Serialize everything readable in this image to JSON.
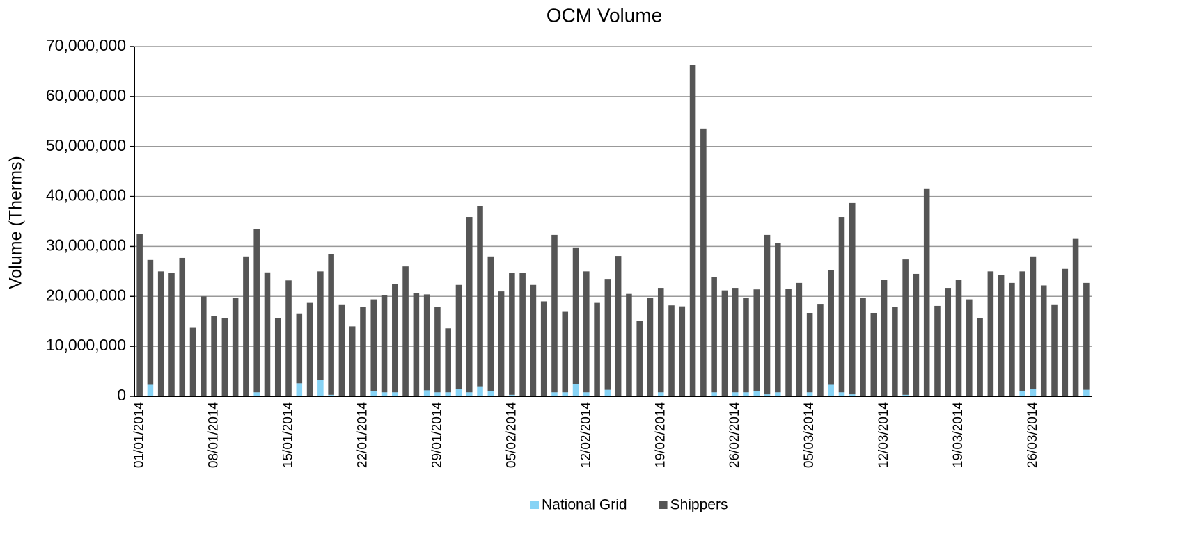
{
  "chart_data": {
    "type": "stacked_bar",
    "title": "OCM Volume",
    "y_label": "Volume (Therms)",
    "categories": [
      "01/01/2014",
      null,
      null,
      null,
      null,
      null,
      null,
      "08/01/2014",
      null,
      null,
      null,
      null,
      null,
      null,
      "15/01/2014",
      null,
      null,
      null,
      null,
      null,
      null,
      "22/01/2014",
      null,
      null,
      null,
      null,
      null,
      null,
      "29/01/2014",
      null,
      null,
      null,
      null,
      null,
      null,
      "05/02/2014",
      null,
      null,
      null,
      null,
      null,
      null,
      "12/02/2014",
      null,
      null,
      null,
      null,
      null,
      null,
      "19/02/2014",
      null,
      null,
      null,
      null,
      null,
      null,
      "26/02/2014",
      null,
      null,
      null,
      null,
      null,
      null,
      "05/03/2014",
      null,
      null,
      null,
      null,
      null,
      null,
      "12/03/2014",
      null,
      null,
      null,
      null,
      null,
      null,
      "19/03/2014",
      null,
      null,
      null,
      null,
      null,
      null,
      "26/03/2014",
      null,
      null,
      null,
      null,
      null
    ],
    "series": [
      {
        "name": "National Grid",
        "color": "#87d3f5",
        "values": [
          0,
          2300000,
          0,
          0,
          0,
          0,
          0,
          0,
          0,
          0,
          0,
          800000,
          0,
          0,
          0,
          2600000,
          0,
          3300000,
          300000,
          0,
          0,
          0,
          1000000,
          800000,
          800000,
          0,
          0,
          1200000,
          800000,
          800000,
          1500000,
          800000,
          2000000,
          1000000,
          0,
          300000,
          0,
          0,
          0,
          800000,
          800000,
          2500000,
          800000,
          0,
          1300000,
          0,
          0,
          0,
          0,
          800000,
          0,
          0,
          0,
          0,
          800000,
          0,
          800000,
          800000,
          1000000,
          400000,
          800000,
          0,
          0,
          800000,
          0,
          2300000,
          800000,
          400000,
          0,
          0,
          0,
          0,
          300000,
          0,
          0,
          0,
          0,
          0,
          0,
          0,
          0,
          0,
          0,
          1000000,
          1500000,
          0,
          0,
          0,
          0,
          1300000
        ]
      },
      {
        "name": "Shippers",
        "color": "#555555",
        "values": [
          32500000,
          25000000,
          25000000,
          24700000,
          27700000,
          13700000,
          20000000,
          16100000,
          15700000,
          19700000,
          28000000,
          32700000,
          24800000,
          15700000,
          23200000,
          14000000,
          18700000,
          21700000,
          28100000,
          18400000,
          14000000,
          17900000,
          18400000,
          19400000,
          21700000,
          26000000,
          20700000,
          19200000,
          17100000,
          12800000,
          20800000,
          35100000,
          36000000,
          27000000,
          21000000,
          24400000,
          24700000,
          22300000,
          19000000,
          31500000,
          16100000,
          27300000,
          24200000,
          18700000,
          22200000,
          28100000,
          20500000,
          15100000,
          19700000,
          20900000,
          18200000,
          18000000,
          66300000,
          53600000,
          23000000,
          21200000,
          20900000,
          18900000,
          20400000,
          31900000,
          29900000,
          21500000,
          22700000,
          15900000,
          18500000,
          23000000,
          35100000,
          38300000,
          19700000,
          16700000,
          23300000,
          17900000,
          27100000,
          24500000,
          41500000,
          18100000,
          21700000,
          23300000,
          19400000,
          15600000,
          25000000,
          24300000,
          22700000,
          24000000,
          26500000,
          22200000,
          18400000,
          25500000,
          31500000,
          21400000
        ]
      }
    ],
    "ylim": [
      0,
      70000000
    ],
    "yticks": [
      0,
      {
        "value": 10000000,
        "label": "10,000,000"
      },
      {
        "value": 20000000,
        "label": "20,000,000"
      },
      {
        "value": 30000000,
        "label": "30,000,000"
      },
      {
        "value": 40000000,
        "label": "40,000,000"
      },
      {
        "value": 50000000,
        "label": "50,000,000"
      },
      {
        "value": 60000000,
        "label": "60,000,000"
      },
      {
        "value": 70000000,
        "label": "70,000,000"
      }
    ],
    "grid": true,
    "legend": "bottom"
  }
}
